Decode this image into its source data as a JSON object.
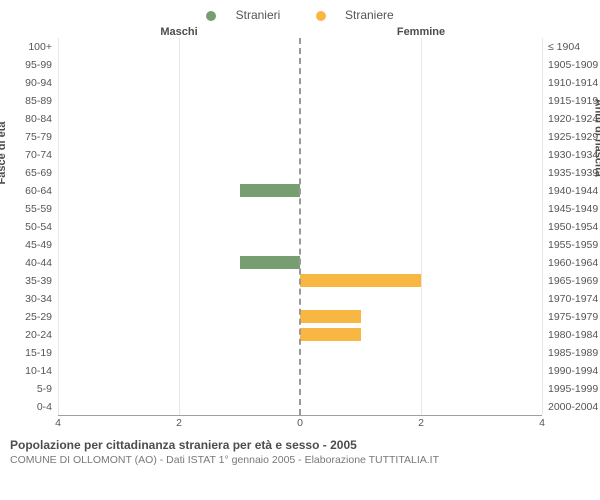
{
  "legend": {
    "series": [
      {
        "label": "Stranieri",
        "color": "#779e70"
      },
      {
        "label": "Straniere",
        "color": "#f7b742"
      }
    ]
  },
  "headers": {
    "left": "Maschi",
    "right": "Femmine"
  },
  "axis_labels": {
    "left": "Fasce di età",
    "right": "Anni di nascita"
  },
  "chart": {
    "type": "population_pyramid",
    "xmax": 4,
    "xticks": [
      4,
      2,
      0,
      2,
      4
    ],
    "grid_color": "#e6e6e6",
    "zero_line_color": "#999999",
    "background_color": "#ffffff",
    "age_bands": [
      {
        "age": "100+",
        "yob": "≤ 1904",
        "m": 0,
        "f": 0
      },
      {
        "age": "95-99",
        "yob": "1905-1909",
        "m": 0,
        "f": 0
      },
      {
        "age": "90-94",
        "yob": "1910-1914",
        "m": 0,
        "f": 0
      },
      {
        "age": "85-89",
        "yob": "1915-1919",
        "m": 0,
        "f": 0
      },
      {
        "age": "80-84",
        "yob": "1920-1924",
        "m": 0,
        "f": 0
      },
      {
        "age": "75-79",
        "yob": "1925-1929",
        "m": 0,
        "f": 0
      },
      {
        "age": "70-74",
        "yob": "1930-1934",
        "m": 0,
        "f": 0
      },
      {
        "age": "65-69",
        "yob": "1935-1939",
        "m": 0,
        "f": 0
      },
      {
        "age": "60-64",
        "yob": "1940-1944",
        "m": 1,
        "f": 0
      },
      {
        "age": "55-59",
        "yob": "1945-1949",
        "m": 0,
        "f": 0
      },
      {
        "age": "50-54",
        "yob": "1950-1954",
        "m": 0,
        "f": 0
      },
      {
        "age": "45-49",
        "yob": "1955-1959",
        "m": 0,
        "f": 0
      },
      {
        "age": "40-44",
        "yob": "1960-1964",
        "m": 1,
        "f": 0
      },
      {
        "age": "35-39",
        "yob": "1965-1969",
        "m": 0,
        "f": 2
      },
      {
        "age": "30-34",
        "yob": "1970-1974",
        "m": 0,
        "f": 0
      },
      {
        "age": "25-29",
        "yob": "1975-1979",
        "m": 0,
        "f": 1
      },
      {
        "age": "20-24",
        "yob": "1980-1984",
        "m": 0,
        "f": 1
      },
      {
        "age": "15-19",
        "yob": "1985-1989",
        "m": 0,
        "f": 0
      },
      {
        "age": "10-14",
        "yob": "1990-1994",
        "m": 0,
        "f": 0
      },
      {
        "age": "5-9",
        "yob": "1995-1999",
        "m": 0,
        "f": 0
      },
      {
        "age": "0-4",
        "yob": "2000-2004",
        "m": 0,
        "f": 0
      }
    ]
  },
  "caption": {
    "title": "Popolazione per cittadinanza straniera per età e sesso - 2005",
    "subtitle": "COMUNE DI OLLOMONT (AO) - Dati ISTAT 1° gennaio 2005 - Elaborazione TUTTITALIA.IT"
  }
}
